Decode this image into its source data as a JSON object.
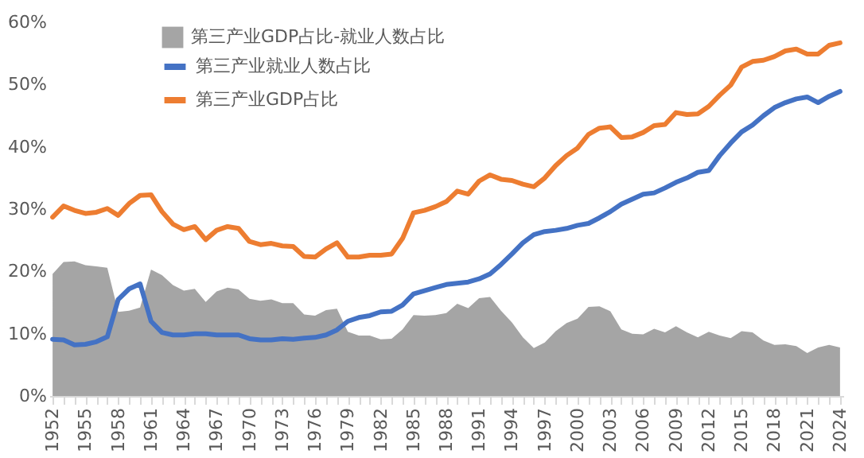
{
  "chart_data": {
    "type": "line",
    "legend": "top left",
    "grid": false,
    "categories": [
      "1952",
      null,
      null,
      "1955",
      null,
      null,
      "1958",
      null,
      null,
      "1961",
      null,
      null,
      "1964",
      null,
      null,
      "1967",
      null,
      null,
      "1970",
      null,
      null,
      "1973",
      null,
      null,
      "1976",
      null,
      null,
      "1979",
      null,
      null,
      "1982",
      null,
      null,
      "1985",
      null,
      null,
      "1988",
      null,
      null,
      "1991",
      null,
      null,
      "1994",
      null,
      null,
      "1997",
      null,
      null,
      "2000",
      null,
      null,
      "2003",
      null,
      null,
      "2006",
      null,
      null,
      "2009",
      null,
      null,
      "2012",
      null,
      null,
      "2015",
      null,
      null,
      "2018",
      null,
      null,
      "2021",
      null,
      null,
      "2024"
    ],
    "ylim": [
      0,
      60
    ],
    "yticks": [
      {
        "value": 0,
        "label": "0%"
      },
      {
        "value": 10,
        "label": "10%"
      },
      {
        "value": 20,
        "label": "20%"
      },
      {
        "value": 30,
        "label": "30%"
      },
      {
        "value": 40,
        "label": "40%"
      },
      {
        "value": 50,
        "label": "50%"
      },
      {
        "value": 60,
        "label": "60%"
      }
    ],
    "series": [
      {
        "name": "第三产业GDP占比-就业人数占比",
        "type": "area",
        "color": "#a5a5a5",
        "values": [
          19.6,
          21.5,
          21.6,
          21.0,
          20.8,
          20.6,
          13.5,
          13.7,
          14.2,
          20.3,
          19.4,
          17.8,
          16.9,
          17.2,
          15.1,
          16.8,
          17.4,
          17.1,
          15.6,
          15.3,
          15.5,
          14.9,
          14.9,
          13.1,
          12.9,
          13.8,
          14.0,
          10.3,
          9.7,
          9.7,
          9.1,
          9.2,
          10.7,
          13.0,
          12.9,
          13.0,
          13.3,
          14.8,
          14.1,
          15.7,
          15.9,
          13.7,
          11.8,
          9.4,
          7.7,
          8.6,
          10.4,
          11.7,
          12.4,
          14.3,
          14.4,
          13.6,
          10.7,
          10.0,
          9.9,
          10.8,
          10.2,
          11.2,
          10.2,
          9.4,
          10.3,
          9.7,
          9.3,
          10.4,
          10.2,
          8.9,
          8.2,
          8.3,
          8.0,
          6.9,
          7.8,
          8.2,
          7.8
        ]
      },
      {
        "name": "第三产业就业人数占比",
        "color": "#4472c4",
        "values": [
          9.1,
          9.0,
          8.2,
          8.3,
          8.7,
          9.5,
          15.5,
          17.2,
          18.0,
          12.0,
          10.2,
          9.8,
          9.8,
          10.0,
          10.0,
          9.8,
          9.8,
          9.8,
          9.2,
          9.0,
          9.0,
          9.2,
          9.1,
          9.3,
          9.4,
          9.8,
          10.6,
          12.0,
          12.6,
          12.9,
          13.5,
          13.6,
          14.6,
          16.4,
          16.9,
          17.4,
          17.9,
          18.1,
          18.3,
          18.8,
          19.6,
          21.1,
          22.8,
          24.6,
          25.9,
          26.4,
          26.6,
          26.9,
          27.4,
          27.7,
          28.6,
          29.6,
          30.8,
          31.6,
          32.4,
          32.6,
          33.4,
          34.3,
          35.0,
          35.9,
          36.2,
          38.6,
          40.6,
          42.4,
          43.5,
          45.0,
          46.3,
          47.1,
          47.7,
          48.0,
          47.1,
          48.1,
          48.9
        ]
      },
      {
        "name": "第三产业GDP占比",
        "color": "#ed7d31",
        "values": [
          28.7,
          30.5,
          29.8,
          29.3,
          29.5,
          30.1,
          29.0,
          30.9,
          32.2,
          32.3,
          29.6,
          27.6,
          26.7,
          27.2,
          25.1,
          26.6,
          27.2,
          26.9,
          24.8,
          24.3,
          24.5,
          24.1,
          24.0,
          22.4,
          22.3,
          23.6,
          24.6,
          22.3,
          22.3,
          22.6,
          22.6,
          22.8,
          25.3,
          29.4,
          29.8,
          30.4,
          31.2,
          32.9,
          32.4,
          34.5,
          35.5,
          34.8,
          34.6,
          34.0,
          33.6,
          35.0,
          37.0,
          38.6,
          39.8,
          42.0,
          43.0,
          43.2,
          41.5,
          41.6,
          42.3,
          43.4,
          43.6,
          45.5,
          45.2,
          45.3,
          46.5,
          48.3,
          49.9,
          52.8,
          53.7,
          53.9,
          54.5,
          55.4,
          55.7,
          54.9,
          54.9,
          56.3,
          56.7
        ]
      }
    ]
  }
}
